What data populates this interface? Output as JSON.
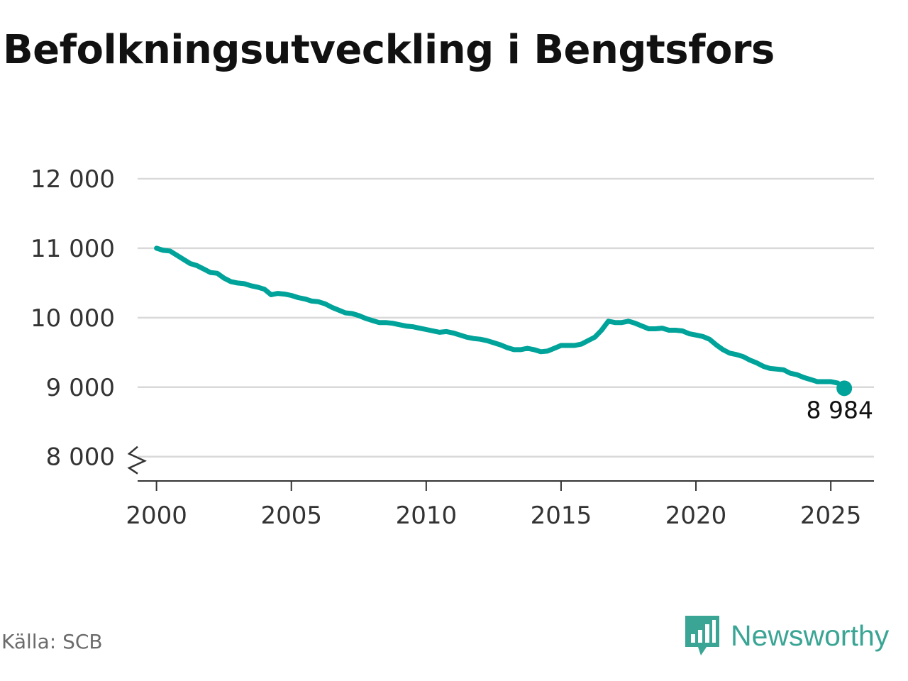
{
  "title": "Befolkningsutveckling i Bengtsfors",
  "source": "Källa: SCB",
  "brand": {
    "name": "Newsworthy",
    "icon": "newsworthy-logo-icon"
  },
  "colors": {
    "line": "#00a39a",
    "grid": "#d9d9d9",
    "axis": "#333333",
    "brand": "#3aa594"
  },
  "chart_data": {
    "type": "line",
    "title": "Befolkningsutveckling i Bengtsfors",
    "xlabel": "",
    "ylabel": "",
    "xlim": [
      1999.3,
      2026.6
    ],
    "ylim": [
      7650,
      12000
    ],
    "y_axis_break": true,
    "grid": "horizontal",
    "x_ticks": [
      2000,
      2005,
      2010,
      2015,
      2020,
      2025
    ],
    "x_tick_labels": [
      "2000",
      "2005",
      "2010",
      "2015",
      "2020",
      "2025"
    ],
    "y_ticks": [
      8000,
      9000,
      10000,
      11000,
      12000
    ],
    "y_tick_labels": [
      "8 000",
      "9 000",
      "10 000",
      "11 000",
      "12 000"
    ],
    "last_value_label": "8 984",
    "series": [
      {
        "name": "",
        "x": [
          2000.0,
          2000.25,
          2000.5,
          2000.75,
          2001.0,
          2001.25,
          2001.5,
          2001.75,
          2002.0,
          2002.25,
          2002.5,
          2002.75,
          2003.0,
          2003.25,
          2003.5,
          2003.75,
          2004.0,
          2004.25,
          2004.5,
          2004.75,
          2005.0,
          2005.25,
          2005.5,
          2005.75,
          2006.0,
          2006.25,
          2006.5,
          2006.75,
          2007.0,
          2007.25,
          2007.5,
          2007.75,
          2008.0,
          2008.25,
          2008.5,
          2008.75,
          2009.0,
          2009.25,
          2009.5,
          2009.75,
          2010.0,
          2010.25,
          2010.5,
          2010.75,
          2011.0,
          2011.25,
          2011.5,
          2011.75,
          2012.0,
          2012.25,
          2012.5,
          2012.75,
          2013.0,
          2013.25,
          2013.5,
          2013.75,
          2014.0,
          2014.25,
          2014.5,
          2014.75,
          2015.0,
          2015.25,
          2015.5,
          2015.75,
          2016.0,
          2016.25,
          2016.5,
          2016.75,
          2017.0,
          2017.25,
          2017.5,
          2017.75,
          2018.0,
          2018.25,
          2018.5,
          2018.75,
          2019.0,
          2019.25,
          2019.5,
          2019.75,
          2020.0,
          2020.25,
          2020.5,
          2020.75,
          2021.0,
          2021.25,
          2021.5,
          2021.75,
          2022.0,
          2022.25,
          2022.5,
          2022.75,
          2023.0,
          2023.25,
          2023.5,
          2023.75,
          2024.0,
          2024.25,
          2024.5,
          2024.75,
          2025.0,
          2025.25,
          2025.5
        ],
        "y": [
          11000,
          10970,
          10960,
          10900,
          10840,
          10780,
          10750,
          10700,
          10650,
          10640,
          10570,
          10520,
          10500,
          10490,
          10460,
          10440,
          10410,
          10330,
          10350,
          10340,
          10320,
          10290,
          10270,
          10240,
          10230,
          10200,
          10150,
          10110,
          10070,
          10060,
          10030,
          9990,
          9960,
          9930,
          9930,
          9920,
          9900,
          9880,
          9870,
          9850,
          9830,
          9810,
          9790,
          9800,
          9780,
          9750,
          9720,
          9700,
          9690,
          9670,
          9640,
          9610,
          9570,
          9540,
          9540,
          9560,
          9540,
          9510,
          9520,
          9560,
          9600,
          9600,
          9600,
          9620,
          9670,
          9720,
          9820,
          9950,
          9930,
          9930,
          9950,
          9920,
          9880,
          9840,
          9840,
          9850,
          9820,
          9820,
          9810,
          9770,
          9750,
          9730,
          9690,
          9610,
          9540,
          9490,
          9470,
          9440,
          9390,
          9350,
          9300,
          9270,
          9260,
          9250,
          9200,
          9180,
          9140,
          9110,
          9080,
          9080,
          9080,
          9060,
          8984
        ]
      }
    ]
  }
}
